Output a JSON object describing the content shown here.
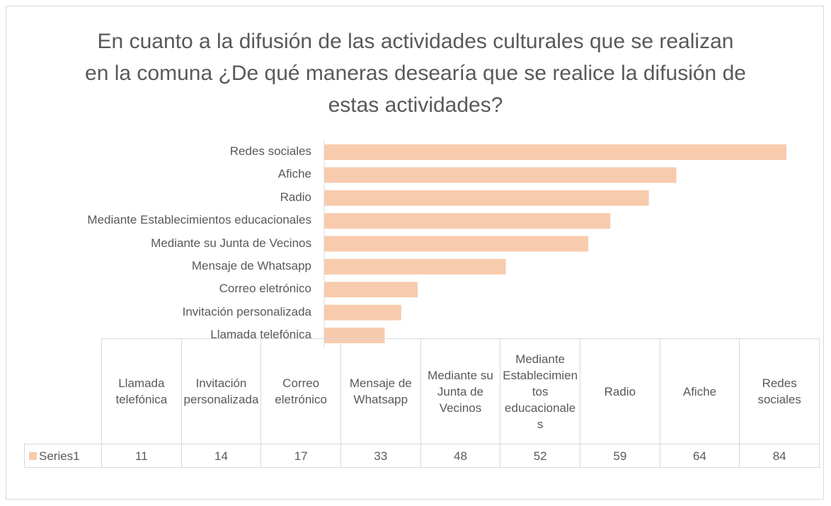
{
  "chart_data": {
    "type": "bar",
    "orientation": "horizontal",
    "title": "En cuanto a la difusión de las actividades culturales que se realizan en la comuna ¿De qué maneras desearía que se realice la difusión de estas actividades?",
    "categories": [
      "Llamada telefónica",
      "Invitación personalizada",
      "Correo eletrónico",
      "Mensaje de Whatsapp",
      "Mediante su Junta de Vecinos",
      "Mediante Establecimientos educacionales",
      "Radio",
      "Afiche",
      "Redes sociales"
    ],
    "series": [
      {
        "name": "Series1",
        "color": "#f8cbad",
        "values": [
          11,
          14,
          17,
          33,
          48,
          52,
          59,
          64,
          84
        ]
      }
    ],
    "data_table": true
  }
}
